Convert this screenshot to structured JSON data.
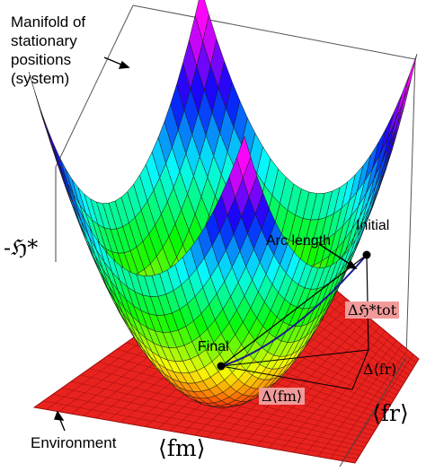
{
  "labels": {
    "manifold_line1": "Manifold of",
    "manifold_line2": "stationary",
    "manifold_line3": "positions",
    "manifold_line4": "(system)",
    "neg_h_star": "-ℌ*",
    "initial": "Initial",
    "arc_length": "Arc length",
    "final": "Final",
    "delta_h_tot": "Δℌ*tot",
    "delta_fr": "Δ⟨fr⟩",
    "delta_fm": "Δ⟨fm⟩",
    "fr_axis": "⟨fr⟩",
    "environment": "Environment",
    "fm_axis": "⟨fm⟩"
  },
  "colors": {
    "environment_plane": "#e8231e",
    "plane_grid": "#b01010",
    "surface_grid": "#1a1a1a",
    "highlight_box": "#f19a9a",
    "path": "#1a1a8c"
  }
}
